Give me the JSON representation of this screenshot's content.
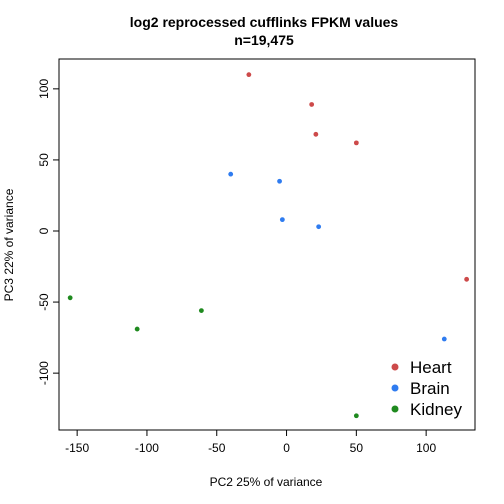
{
  "chart_data": {
    "type": "scatter",
    "title": "log2 reprocessed cufflinks FPKM values",
    "subtitle": "n=19,475",
    "xlabel": "PC2 25% of variance",
    "ylabel": "PC3 22% of variance",
    "xlim": [
      -163,
      135
    ],
    "ylim": [
      -140,
      121
    ],
    "xticks": [
      -150,
      -100,
      -50,
      0,
      50,
      100
    ],
    "yticks": [
      -100,
      -50,
      0,
      50,
      100
    ],
    "grid": false,
    "legend_position": "bottom-right",
    "series": [
      {
        "name": "Heart",
        "color": "#cd4a4a",
        "points": [
          [
            -27,
            110
          ],
          [
            18,
            89
          ],
          [
            21,
            68
          ],
          [
            50,
            62
          ],
          [
            129,
            -34
          ]
        ]
      },
      {
        "name": "Brain",
        "color": "#2f7cf0",
        "points": [
          [
            -40,
            40
          ],
          [
            -5,
            35
          ],
          [
            -3,
            8
          ],
          [
            23,
            3
          ],
          [
            113,
            -76
          ]
        ]
      },
      {
        "name": "Kidney",
        "color": "#1f8a1f",
        "points": [
          [
            -155,
            -47
          ],
          [
            -107,
            -69
          ],
          [
            -61,
            -56
          ],
          [
            50,
            -130
          ]
        ]
      }
    ]
  }
}
